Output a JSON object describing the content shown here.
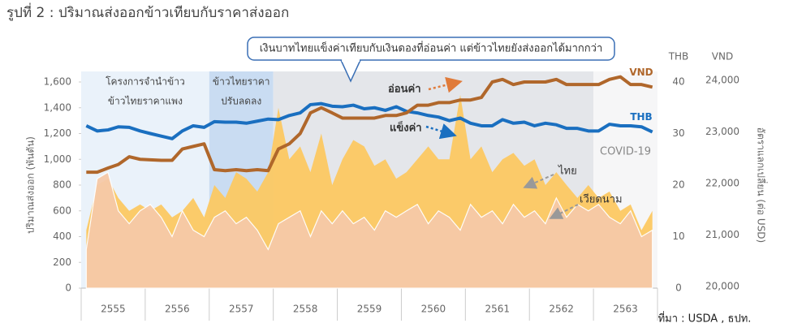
{
  "chart_data": {
    "type": "area-line-combo",
    "title": "รูปที่ 2 : ปริมาณส่งออกข้าวเทียบกับราคาส่งออก",
    "y_label": "ปริมาณส่งออก (พันตัน)",
    "y_right_label": "อัตราแลกเปลี่ยน (ต่อ USD)",
    "y2_unit": "THB",
    "y3_unit": "VND",
    "source": "ที่มา : USDA , ธปท.",
    "callout": "เงินบาทไทยแข็งค่าเทียบกับเงินดองที่อ่อนค่า แต่ข้าวไทยยังส่งออกได้มากกว่า",
    "annotations": [
      "อ่อนค่า",
      "แข็งค่า",
      "ไทย",
      "เวียดนาม"
    ],
    "regions": [
      {
        "start": 2555,
        "end": 2557,
        "color": "#eaf2fa",
        "label_lines": [
          "โครงการจำนำข้าว",
          "ข้าวไทยราคาแพง"
        ]
      },
      {
        "start": 2557,
        "end": 2558,
        "color": "#c9dcf2",
        "label_lines": [
          "ข้าวไทยราคา",
          "ปรับลดลง"
        ]
      },
      {
        "start": 2558,
        "end": 2563,
        "color": "#e4e6ea",
        "label_lines": []
      },
      {
        "start": 2563,
        "end": 2564,
        "color": "#f6f6f7",
        "label_lines": [
          "COVID-19"
        ]
      }
    ],
    "xlim": [
      2555,
      2564
    ],
    "xticks": [
      {
        "value": 2555.5,
        "label": "2555"
      },
      {
        "value": 2556.5,
        "label": "2556"
      },
      {
        "value": 2557.5,
        "label": "2557"
      },
      {
        "value": 2558.5,
        "label": "2558"
      },
      {
        "value": 2559.5,
        "label": "2559"
      },
      {
        "value": 2560.5,
        "label": "2560"
      },
      {
        "value": 2561.5,
        "label": "2561"
      },
      {
        "value": 2562.5,
        "label": "2562"
      },
      {
        "value": 2563.5,
        "label": "2563"
      }
    ],
    "ylim": [
      0,
      1600
    ],
    "yticks": [
      0,
      200,
      400,
      600,
      800,
      {
        "value": 1000,
        "label": "1,000"
      },
      {
        "value": 1200,
        "label": "1,200"
      },
      {
        "value": 1400,
        "label": "1,400"
      },
      {
        "value": 1600,
        "label": "1,600"
      }
    ],
    "y2lim": [
      0,
      40
    ],
    "y2ticks": [
      0,
      10,
      20,
      30,
      40
    ],
    "y3lim": [
      20000,
      24000
    ],
    "y3ticks": [
      {
        "value": 20000,
        "label": "20,000"
      },
      {
        "value": 21000,
        "label": "21,000"
      },
      {
        "value": 22000,
        "label": "22,000"
      },
      {
        "value": 23000,
        "label": "23,000"
      },
      {
        "value": 24000,
        "label": "24,000"
      }
    ],
    "x": [
      2555.08,
      2555.25,
      2555.42,
      2555.58,
      2555.75,
      2555.92,
      2556.08,
      2556.25,
      2556.42,
      2556.58,
      2556.75,
      2556.92,
      2557.08,
      2557.25,
      2557.42,
      2557.58,
      2557.75,
      2557.92,
      2558.08,
      2558.25,
      2558.42,
      2558.58,
      2558.75,
      2558.92,
      2559.08,
      2559.25,
      2559.42,
      2559.58,
      2559.75,
      2559.92,
      2560.08,
      2560.25,
      2560.42,
      2560.58,
      2560.75,
      2560.92,
      2561.08,
      2561.25,
      2561.42,
      2561.58,
      2561.75,
      2561.92,
      2562.08,
      2562.25,
      2562.42,
      2562.58,
      2562.75,
      2562.92,
      2563.08,
      2563.25,
      2563.42,
      2563.58,
      2563.75,
      2563.92
    ],
    "series": [
      {
        "name": "ไทย",
        "kind": "area",
        "axis": "y",
        "color": "#fcc862",
        "values": [
          450,
          800,
          850,
          700,
          600,
          650,
          600,
          650,
          550,
          600,
          700,
          550,
          800,
          700,
          900,
          850,
          750,
          900,
          1400,
          1000,
          1100,
          900,
          1200,
          800,
          1000,
          1150,
          1100,
          950,
          1000,
          850,
          900,
          1000,
          1100,
          1000,
          1000,
          1500,
          1000,
          1100,
          900,
          1000,
          1050,
          950,
          1000,
          800,
          900,
          800,
          700,
          800,
          700,
          750,
          600,
          650,
          450,
          600
        ]
      },
      {
        "name": "เวียดนาม",
        "kind": "area",
        "axis": "y",
        "color": "#f6c9a8",
        "values": [
          300,
          850,
          900,
          600,
          500,
          600,
          650,
          550,
          400,
          600,
          450,
          400,
          550,
          600,
          500,
          550,
          450,
          300,
          500,
          550,
          600,
          400,
          600,
          500,
          600,
          500,
          550,
          450,
          600,
          550,
          600,
          650,
          500,
          600,
          550,
          450,
          650,
          550,
          600,
          500,
          650,
          550,
          600,
          500,
          700,
          550,
          650,
          600,
          650,
          550,
          500,
          600,
          400,
          450
        ]
      },
      {
        "name": "THB",
        "kind": "line",
        "axis": "y2",
        "color": "#1a6fc0",
        "values": [
          31.5,
          30.5,
          30.7,
          31.3,
          31.2,
          30.5,
          30,
          29.5,
          29,
          30.5,
          31.5,
          31.2,
          32.3,
          32.2,
          32.2,
          32,
          32.4,
          32.8,
          32.7,
          33.5,
          34,
          35.6,
          35.8,
          35.3,
          35.2,
          35.5,
          34.8,
          35,
          34.5,
          35.2,
          34.3,
          34,
          33.5,
          33.2,
          32.5,
          33,
          32,
          31.5,
          31.5,
          32.7,
          32,
          32.2,
          31.5,
          32,
          31.7,
          31,
          31,
          30.5,
          30.5,
          31.8,
          31.5,
          31.5,
          31.3,
          30.3
        ]
      },
      {
        "name": "VND",
        "kind": "line",
        "axis": "y3",
        "color": "#b0672b",
        "values": [
          22250,
          22250,
          22330,
          22400,
          22550,
          22500,
          22490,
          22480,
          22480,
          22700,
          22750,
          22800,
          22300,
          22280,
          22300,
          22280,
          22300,
          22280,
          22700,
          22800,
          23000,
          23400,
          23500,
          23400,
          23300,
          23300,
          23300,
          23300,
          23350,
          23350,
          23400,
          23550,
          23550,
          23600,
          23600,
          23650,
          23650,
          23700,
          24000,
          24050,
          23950,
          24000,
          24000,
          24000,
          24050,
          23950,
          23950,
          23950,
          23950,
          24050,
          24100,
          23950,
          23950,
          23900
        ]
      }
    ]
  }
}
